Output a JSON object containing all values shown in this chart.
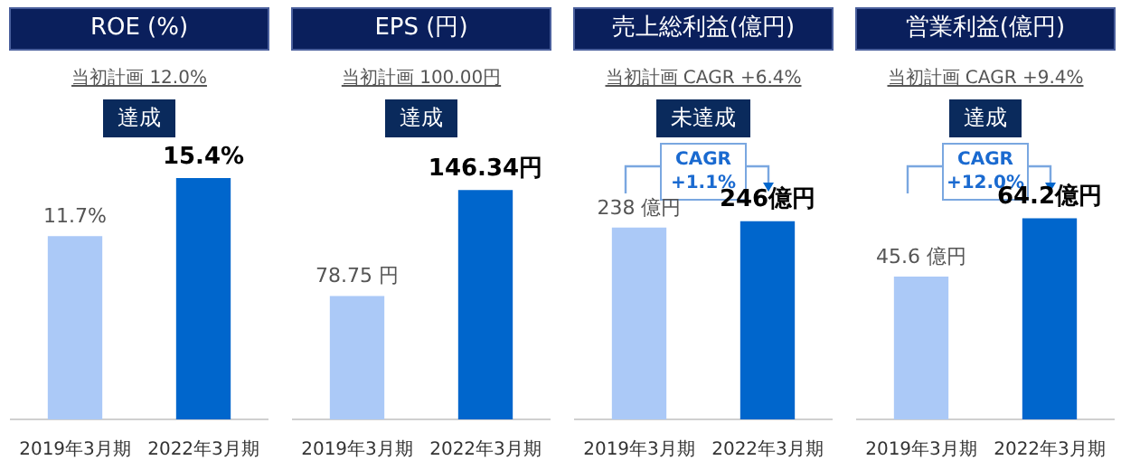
{
  "chart_data": [
    {
      "type": "bar",
      "title": "ROE (%)",
      "subtitle": "当初計画 12.0%",
      "annotations": [
        "達成"
      ],
      "categories": [
        "2019年3月期",
        "2022年3月期"
      ],
      "values": [
        11.7,
        15.4
      ],
      "colors": [
        "#abc9f7",
        "#0066cc"
      ],
      "value_labels": [
        "11.7%",
        "15.4%"
      ]
    },
    {
      "type": "bar",
      "title": "EPS (円)",
      "subtitle": "当初計画 100.00円",
      "annotations": [
        "達成"
      ],
      "categories": [
        "2019年3月期",
        "2022年3月期"
      ],
      "values": [
        78.75,
        146.34
      ],
      "colors": [
        "#abc9f7",
        "#0066cc"
      ],
      "value_labels": [
        "78.75 円",
        "146.34円"
      ]
    },
    {
      "type": "bar",
      "title": "売上総利益(億円)",
      "subtitle": "当初計画 CAGR +6.4%",
      "annotations": [
        "未達成",
        "CAGR +1.1%"
      ],
      "categories": [
        "2019年3月期",
        "2022年3月期"
      ],
      "values": [
        238,
        246
      ],
      "colors": [
        "#abc9f7",
        "#0066cc"
      ],
      "value_labels": [
        "238 億円",
        "246億円"
      ]
    },
    {
      "type": "bar",
      "title": "営業利益(億円)",
      "subtitle": "当初計画 CAGR +9.4%",
      "annotations": [
        "達成",
        "CAGR +12.0%"
      ],
      "categories": [
        "2019年3月期",
        "2022年3月期"
      ],
      "values": [
        45.6,
        64.2
      ],
      "colors": [
        "#abc9f7",
        "#0066cc"
      ],
      "value_labels": [
        "45.6 億円",
        "64.2億円"
      ]
    }
  ]
}
